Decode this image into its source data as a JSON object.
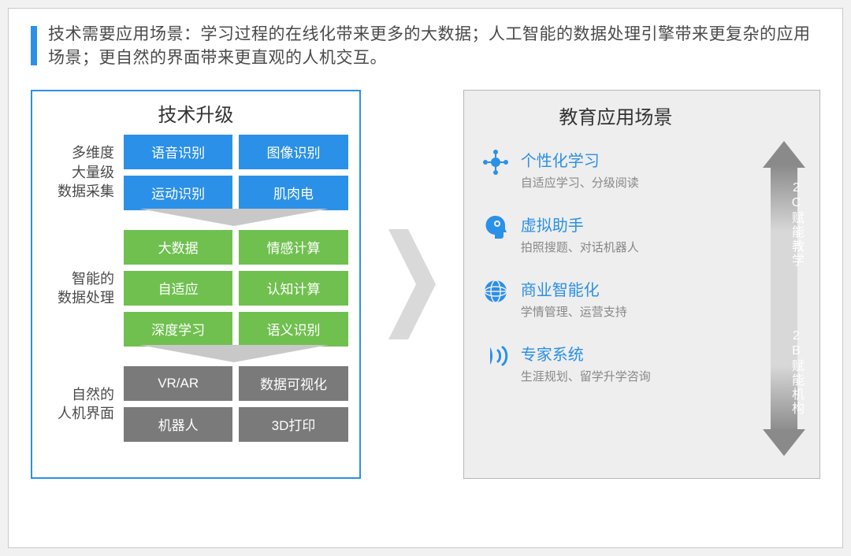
{
  "colors": {
    "accent": "#2b90e8",
    "blue_tile": "#2b90e8",
    "green_tile": "#70c050",
    "gray_tile": "#7a7a7a",
    "text_dark": "#4a4a4a",
    "text_muted": "#888888",
    "panel_bg": "#eeeeee",
    "border_gray": "#b8b8b8",
    "arrow_gray": "#cfcfcf",
    "flow_arrow_fill": "#c8c8c8"
  },
  "header": {
    "text": "技术需要应用场景：学习过程的在线化带来更多的大数据；人工智能的数据处理引擎带来更复杂的应用场景；更自然的界面带来更直观的人机交互。"
  },
  "left": {
    "title": "技术升级",
    "sections": [
      {
        "label": "多维度\n大量级\n数据采集",
        "color": "#2b90e8",
        "tiles": [
          "语音识别",
          "图像识别",
          "运动识别",
          "肌肉电"
        ]
      },
      {
        "label": "智能的\n数据处理",
        "color": "#70c050",
        "tiles": [
          "大数据",
          "情感计算",
          "自适应",
          "认知计算",
          "深度学习",
          "语义识别"
        ]
      },
      {
        "label": "自然的\n人机界面",
        "color": "#7a7a7a",
        "tiles": [
          "VR/AR",
          "数据可视化",
          "机器人",
          "3D打印"
        ]
      }
    ]
  },
  "right": {
    "title": "教育应用场景",
    "scenarios": [
      {
        "icon": "network-icon",
        "title": "个性化学习",
        "sub": "自适应学习、分级阅读"
      },
      {
        "icon": "head-icon",
        "title": "虚拟助手",
        "sub": "拍照搜题、对话机器人"
      },
      {
        "icon": "globe-icon",
        "title": "商业智能化",
        "sub": "学情管理、运营支持"
      },
      {
        "icon": "voice-icon",
        "title": "专家系统",
        "sub": "生涯规划、留学升学咨询"
      }
    ],
    "vertical_arrow": {
      "top_label": "2C\n赋能\n教学",
      "bottom_label": "2B\n赋能\n机构"
    }
  }
}
